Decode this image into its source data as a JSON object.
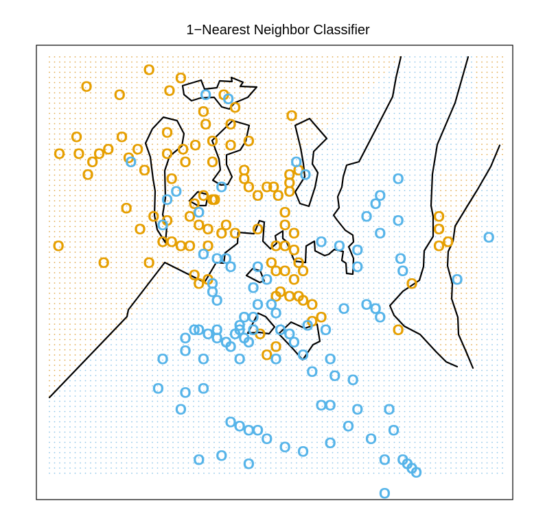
{
  "chart_data": {
    "type": "scatter",
    "title": "1−Nearest Neighbor Classifier",
    "xlabel": "",
    "ylabel": "",
    "marker": "O",
    "axes_visible": false,
    "background_grid": "dotted class-region grid",
    "colors": {
      "orange": "#E69F00",
      "blue": "#56B4E9",
      "orange_region": "#E0A84A",
      "blue_region": "#8CC4E8",
      "boundary": "#000000"
    },
    "xlim": [
      0,
      1
    ],
    "ylim": [
      0,
      1
    ],
    "series": [
      {
        "color": "orange",
        "points": [
          [
            0.082,
            0.93
          ],
          [
            0.155,
            0.91
          ],
          [
            0.22,
            0.97
          ],
          [
            0.29,
            0.95
          ],
          [
            0.265,
            0.92
          ],
          [
            0.385,
            0.91
          ],
          [
            0.34,
            0.87
          ],
          [
            0.41,
            0.88
          ],
          [
            0.4,
            0.84
          ],
          [
            0.345,
            0.84
          ],
          [
            0.36,
            0.8
          ],
          [
            0.4,
            0.79
          ],
          [
            0.322,
            0.79
          ],
          [
            0.26,
            0.82
          ],
          [
            0.535,
            0.86
          ],
          [
            0.44,
            0.8
          ],
          [
            0.022,
            0.77
          ],
          [
            0.06,
            0.81
          ],
          [
            0.065,
            0.77
          ],
          [
            0.11,
            0.77
          ],
          [
            0.095,
            0.75
          ],
          [
            0.13,
            0.78
          ],
          [
            0.16,
            0.81
          ],
          [
            0.195,
            0.78
          ],
          [
            0.175,
            0.76
          ],
          [
            0.26,
            0.77
          ],
          [
            0.295,
            0.78
          ],
          [
            0.21,
            0.73
          ],
          [
            0.085,
            0.72
          ],
          [
            0.27,
            0.71
          ],
          [
            0.3,
            0.75
          ],
          [
            0.36,
            0.75
          ],
          [
            0.43,
            0.73
          ],
          [
            0.43,
            0.71
          ],
          [
            0.44,
            0.69
          ],
          [
            0.46,
            0.67
          ],
          [
            0.365,
            0.66
          ],
          [
            0.34,
            0.67
          ],
          [
            0.36,
            0.66
          ],
          [
            0.32,
            0.65
          ],
          [
            0.48,
            0.69
          ],
          [
            0.495,
            0.69
          ],
          [
            0.505,
            0.67
          ],
          [
            0.53,
            0.7
          ],
          [
            0.55,
            0.73
          ],
          [
            0.53,
            0.72
          ],
          [
            0.53,
            0.68
          ],
          [
            0.17,
            0.64
          ],
          [
            0.23,
            0.62
          ],
          [
            0.2,
            0.59
          ],
          [
            0.26,
            0.61
          ],
          [
            0.31,
            0.62
          ],
          [
            0.33,
            0.6
          ],
          [
            0.35,
            0.59
          ],
          [
            0.38,
            0.58
          ],
          [
            0.39,
            0.6
          ],
          [
            0.41,
            0.58
          ],
          [
            0.46,
            0.59
          ],
          [
            0.52,
            0.6
          ],
          [
            0.52,
            0.63
          ],
          [
            0.54,
            0.58
          ],
          [
            0.5,
            0.55
          ],
          [
            0.52,
            0.55
          ],
          [
            0.54,
            0.54
          ],
          [
            0.55,
            0.51
          ],
          [
            0.49,
            0.51
          ],
          [
            0.5,
            0.49
          ],
          [
            0.52,
            0.49
          ],
          [
            0.54,
            0.47
          ],
          [
            0.56,
            0.49
          ],
          [
            0.25,
            0.56
          ],
          [
            0.27,
            0.56
          ],
          [
            0.29,
            0.55
          ],
          [
            0.31,
            0.55
          ],
          [
            0.35,
            0.55
          ],
          [
            0.02,
            0.55
          ],
          [
            0.12,
            0.51
          ],
          [
            0.22,
            0.51
          ],
          [
            0.32,
            0.48
          ],
          [
            0.35,
            0.47
          ],
          [
            0.33,
            0.46
          ],
          [
            0.5,
            0.43
          ],
          [
            0.53,
            0.43
          ],
          [
            0.55,
            0.43
          ],
          [
            0.56,
            0.42
          ],
          [
            0.58,
            0.41
          ],
          [
            0.6,
            0.38
          ],
          [
            0.58,
            0.37
          ],
          [
            0.51,
            0.44
          ],
          [
            0.48,
            0.29
          ],
          [
            0.86,
            0.62
          ],
          [
            0.86,
            0.59
          ],
          [
            0.86,
            0.55
          ],
          [
            0.88,
            0.56
          ],
          [
            0.8,
            0.46
          ],
          [
            0.77,
            0.35
          ],
          [
            0.465,
            0.34
          ],
          [
            0.5,
            0.31
          ]
        ]
      },
      {
        "color": "blue",
        "points": [
          [
            0.345,
            0.91
          ],
          [
            0.395,
            0.9
          ],
          [
            0.545,
            0.75
          ],
          [
            0.565,
            0.72
          ],
          [
            0.77,
            0.71
          ],
          [
            0.73,
            0.67
          ],
          [
            0.72,
            0.65
          ],
          [
            0.7,
            0.62
          ],
          [
            0.77,
            0.61
          ],
          [
            0.73,
            0.58
          ],
          [
            0.6,
            0.56
          ],
          [
            0.64,
            0.55
          ],
          [
            0.68,
            0.54
          ],
          [
            0.68,
            0.5
          ],
          [
            0.775,
            0.52
          ],
          [
            0.78,
            0.49
          ],
          [
            0.9,
            0.47
          ],
          [
            0.97,
            0.57
          ],
          [
            0.18,
            0.75
          ],
          [
            0.28,
            0.68
          ],
          [
            0.26,
            0.66
          ],
          [
            0.38,
            0.69
          ],
          [
            0.33,
            0.63
          ],
          [
            0.25,
            0.6
          ],
          [
            0.34,
            0.53
          ],
          [
            0.37,
            0.52
          ],
          [
            0.39,
            0.52
          ],
          [
            0.4,
            0.5
          ],
          [
            0.46,
            0.5
          ],
          [
            0.48,
            0.47
          ],
          [
            0.45,
            0.45
          ],
          [
            0.36,
            0.46
          ],
          [
            0.36,
            0.44
          ],
          [
            0.37,
            0.42
          ],
          [
            0.46,
            0.41
          ],
          [
            0.49,
            0.41
          ],
          [
            0.45,
            0.38
          ],
          [
            0.45,
            0.35
          ],
          [
            0.41,
            0.34
          ],
          [
            0.43,
            0.33
          ],
          [
            0.44,
            0.32
          ],
          [
            0.4,
            0.31
          ],
          [
            0.39,
            0.32
          ],
          [
            0.54,
            0.32
          ],
          [
            0.53,
            0.34
          ],
          [
            0.51,
            0.35
          ],
          [
            0.61,
            0.35
          ],
          [
            0.65,
            0.4
          ],
          [
            0.7,
            0.41
          ],
          [
            0.72,
            0.4
          ],
          [
            0.73,
            0.38
          ],
          [
            0.57,
            0.36
          ],
          [
            0.5,
            0.39
          ],
          [
            0.43,
            0.38
          ],
          [
            0.42,
            0.36
          ],
          [
            0.42,
            0.35
          ],
          [
            0.37,
            0.35
          ],
          [
            0.37,
            0.33
          ],
          [
            0.35,
            0.34
          ],
          [
            0.33,
            0.35
          ],
          [
            0.32,
            0.35
          ],
          [
            0.3,
            0.33
          ],
          [
            0.3,
            0.3
          ],
          [
            0.25,
            0.28
          ],
          [
            0.34,
            0.28
          ],
          [
            0.42,
            0.28
          ],
          [
            0.5,
            0.28
          ],
          [
            0.56,
            0.29
          ],
          [
            0.62,
            0.28
          ],
          [
            0.58,
            0.25
          ],
          [
            0.63,
            0.24
          ],
          [
            0.67,
            0.23
          ],
          [
            0.24,
            0.21
          ],
          [
            0.3,
            0.2
          ],
          [
            0.34,
            0.21
          ],
          [
            0.29,
            0.16
          ],
          [
            0.4,
            0.13
          ],
          [
            0.42,
            0.12
          ],
          [
            0.44,
            0.11
          ],
          [
            0.46,
            0.11
          ],
          [
            0.6,
            0.17
          ],
          [
            0.62,
            0.17
          ],
          [
            0.68,
            0.16
          ],
          [
            0.75,
            0.16
          ],
          [
            0.76,
            0.11
          ],
          [
            0.66,
            0.12
          ],
          [
            0.71,
            0.09
          ],
          [
            0.62,
            0.08
          ],
          [
            0.48,
            0.09
          ],
          [
            0.52,
            0.07
          ],
          [
            0.56,
            0.06
          ],
          [
            0.38,
            0.05
          ],
          [
            0.74,
            0.04
          ],
          [
            0.78,
            0.04
          ],
          [
            0.79,
            0.03
          ],
          [
            0.8,
            0.02
          ],
          [
            0.81,
            0.01
          ],
          [
            0.44,
            0.03
          ],
          [
            0.74,
            -0.04
          ],
          [
            0.33,
            0.04
          ]
        ]
      }
    ]
  }
}
